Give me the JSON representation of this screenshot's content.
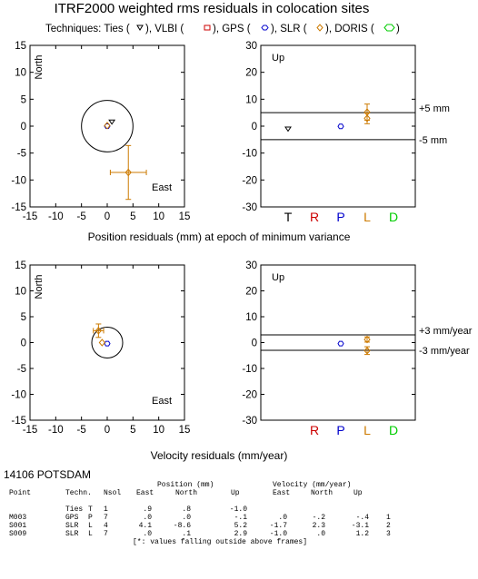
{
  "header": {
    "title": "ITRF2000 weighted rms residuals in colocation sites",
    "techniques_prefix": "Techniques: Ties (",
    "t_ties_close": "), VLBI (",
    "t_vlbi_close": "), GPS (",
    "t_gps_close": "), SLR (",
    "t_slr_close": "), DORIS (",
    "t_doris_close": ")"
  },
  "colors": {
    "ties": "#000000",
    "vlbi": "#cc0000",
    "gps": "#0000cc",
    "slr": "#cc7a00",
    "doris": "#00cc00",
    "errorbar": "#cc7a00"
  },
  "captions": {
    "position": "Position residuals (mm) at epoch of minimum variance",
    "velocity": "Velocity residuals (mm/year)"
  },
  "chart_data": [
    {
      "id": "position-horizontal",
      "type": "scatter",
      "xlim": [
        -15,
        15
      ],
      "ylim": [
        -15,
        15
      ],
      "xticks": [
        "-15",
        "-10",
        "-5",
        "0",
        "5",
        "10",
        "15"
      ],
      "yticks": [
        "15",
        "10",
        "5",
        "0",
        "-5",
        "-10",
        "-15"
      ],
      "north_label": "North",
      "east_label": "East",
      "circle_radius": 5,
      "points": [
        {
          "tech": "ties",
          "east": 0.9,
          "north": 0.8
        },
        {
          "tech": "gps",
          "east": 0.0,
          "north": 0.0
        },
        {
          "tech": "slr",
          "east": 4.1,
          "north": -8.6,
          "err_e": 3.5,
          "err_n": 5.0
        },
        {
          "tech": "slr",
          "east": 0.0,
          "north": 0.1
        }
      ]
    },
    {
      "id": "position-up",
      "type": "scatter",
      "ylim": [
        -30,
        30
      ],
      "yticks": [
        "30",
        "20",
        "10",
        "0",
        "-10",
        "-20",
        "-30"
      ],
      "up_label": "Up",
      "limit": 5,
      "limit_labels": [
        "+5 mm",
        "-5 mm"
      ],
      "categories": [
        "T",
        "R",
        "P",
        "L",
        "D"
      ],
      "points": [
        {
          "tech": "ties",
          "cat": "T",
          "up": -1.0
        },
        {
          "tech": "gps",
          "cat": "P",
          "up": -0.1
        },
        {
          "tech": "slr",
          "cat": "L",
          "up": 5.2,
          "err": 3.0
        },
        {
          "tech": "slr",
          "cat": "L",
          "up": 2.9,
          "err": 2.0
        }
      ]
    },
    {
      "id": "velocity-horizontal",
      "type": "scatter",
      "xlim": [
        -15,
        15
      ],
      "ylim": [
        -15,
        15
      ],
      "xticks": [
        "-15",
        "-10",
        "-5",
        "0",
        "5",
        "10",
        "15"
      ],
      "yticks": [
        "15",
        "10",
        "5",
        "0",
        "-5",
        "-10",
        "-15"
      ],
      "north_label": "North",
      "east_label": "East",
      "circle_radius": 3,
      "points": [
        {
          "tech": "gps",
          "east": 0.0,
          "north": -0.2
        },
        {
          "tech": "slr",
          "east": -1.7,
          "north": 2.3,
          "err_e": 1.0,
          "err_n": 1.3
        },
        {
          "tech": "slr",
          "east": -1.0,
          "north": 0.0
        }
      ]
    },
    {
      "id": "velocity-up",
      "type": "scatter",
      "ylim": [
        -30,
        30
      ],
      "yticks": [
        "30",
        "20",
        "10",
        "0",
        "-10",
        "-20",
        "-30"
      ],
      "up_label": "Up",
      "limit": 3,
      "limit_labels": [
        "+3 mm/year",
        "-3 mm/year"
      ],
      "categories": [
        "R",
        "P",
        "L",
        "D"
      ],
      "points": [
        {
          "tech": "gps",
          "cat": "P",
          "up": -0.4
        },
        {
          "tech": "slr",
          "cat": "L",
          "up": -3.1,
          "err": 1.5
        },
        {
          "tech": "slr",
          "cat": "L",
          "up": 1.2,
          "err": 1.0
        }
      ]
    }
  ],
  "table": {
    "site": "14106 POTSDAM",
    "group_position": "Position (mm)",
    "group_velocity": "Velocity (mm/year)",
    "columns": [
      "Point",
      "Techn.",
      "Nsol",
      "East",
      "North",
      "Up",
      "East",
      "North",
      "Up"
    ],
    "rows": [
      [
        "",
        "Ties",
        "T",
        "1",
        ".9",
        ".8",
        "-1.0",
        "",
        "",
        "",
        ""
      ],
      [
        "M003",
        "GPS",
        "P",
        "7",
        ".0",
        ".0",
        "-.1",
        ".0",
        "-.2",
        "-.4",
        "1"
      ],
      [
        "S001",
        "SLR",
        "L",
        "4",
        "4.1",
        "-8.6",
        "5.2",
        "-1.7",
        "2.3",
        "-3.1",
        "2"
      ],
      [
        "S009",
        "SLR",
        "L",
        "7",
        ".0",
        ".1",
        "2.9",
        "-1.0",
        ".0",
        "1.2",
        "3"
      ]
    ],
    "footnote": "[*: values falling outside above frames]"
  }
}
